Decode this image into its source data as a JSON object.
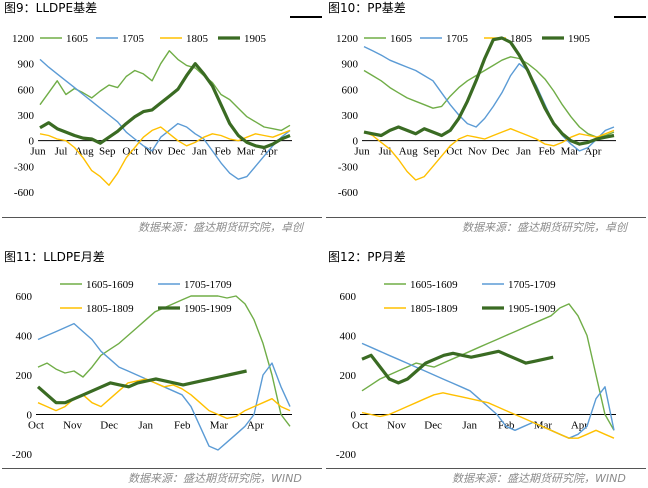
{
  "colors": {
    "s1605": "#70ad47",
    "s1705": "#5b9bd5",
    "s1805": "#ffc000",
    "s1905": "#3a6b23"
  },
  "fig9": {
    "title": "图9：LLDPE基差",
    "source": "数据来源：盛达期货研究院，卓创"
  },
  "fig10": {
    "title": "图10：PP基差",
    "source": "数据来源：盛达期货研究院，卓创"
  },
  "fig11": {
    "title": "图11：LLDPE月差",
    "source": "数据来源：盛达期货研究院，WIND"
  },
  "fig12": {
    "title": "图12：PP月差",
    "source": "数据来源：盛达期货研究院，WIND"
  },
  "chart_data": [
    {
      "id": "fig9",
      "type": "line",
      "x_ticks": [
        "Jun",
        "Jul",
        "Aug",
        "Sep",
        "Oct",
        "Nov",
        "Dec",
        "Jan",
        "Feb",
        "Mar",
        "Apr"
      ],
      "yticks": [
        1200,
        900,
        600,
        300,
        0,
        -300,
        -600
      ],
      "ylim": [
        -600,
        1200
      ],
      "legend_position": "top",
      "series": [
        {
          "name": "1605",
          "key": "s1605",
          "values": [
            420,
            560,
            700,
            540,
            610,
            560,
            500,
            580,
            650,
            620,
            750,
            820,
            780,
            700,
            900,
            1050,
            950,
            880,
            850,
            760,
            680,
            540,
            480,
            380,
            280,
            220,
            160,
            140,
            120,
            180
          ]
        },
        {
          "name": "1705",
          "key": "s1705",
          "values": [
            950,
            860,
            780,
            700,
            620,
            540,
            460,
            380,
            300,
            220,
            100,
            20,
            -60,
            -120,
            40,
            120,
            200,
            160,
            80,
            20,
            -120,
            -260,
            -380,
            -450,
            -420,
            -300,
            -180,
            -60,
            40,
            120
          ]
        },
        {
          "name": "1805",
          "key": "s1805",
          "values": [
            80,
            60,
            20,
            0,
            -80,
            -200,
            -350,
            -420,
            -520,
            -380,
            -200,
            -80,
            40,
            120,
            160,
            80,
            0,
            -60,
            -20,
            40,
            80,
            60,
            20,
            0,
            40,
            80,
            60,
            40,
            80,
            120
          ]
        },
        {
          "name": "1905",
          "key": "s1905",
          "values": [
            150,
            210,
            140,
            100,
            60,
            30,
            20,
            -30,
            40,
            110,
            200,
            280,
            340,
            360,
            440,
            520,
            600,
            760,
            900,
            780,
            640,
            420,
            200,
            60,
            -20,
            -60,
            -80,
            -40,
            20,
            60
          ]
        }
      ]
    },
    {
      "id": "fig10",
      "type": "line",
      "x_ticks": [
        "Jun",
        "Jul",
        "Aug",
        "Sep",
        "Oct",
        "Nov",
        "Dec",
        "Jan",
        "Feb",
        "Mar",
        "Apr"
      ],
      "yticks": [
        1200,
        900,
        600,
        300,
        0,
        -300,
        -600
      ],
      "ylim": [
        -600,
        1200
      ],
      "legend_position": "top",
      "series": [
        {
          "name": "1605",
          "key": "s1605",
          "values": [
            820,
            760,
            700,
            620,
            560,
            500,
            460,
            420,
            380,
            400,
            520,
            620,
            700,
            760,
            820,
            880,
            940,
            980,
            960,
            900,
            820,
            720,
            580,
            420,
            280,
            160,
            80,
            40,
            60,
            100
          ]
        },
        {
          "name": "1705",
          "key": "s1705",
          "values": [
            1100,
            1050,
            1000,
            940,
            900,
            860,
            820,
            760,
            700,
            560,
            420,
            300,
            200,
            160,
            260,
            400,
            560,
            760,
            900,
            820,
            640,
            420,
            200,
            60,
            -40,
            -120,
            -80,
            20,
            120,
            160
          ]
        },
        {
          "name": "1805",
          "key": "s1805",
          "values": [
            100,
            60,
            -20,
            -100,
            -220,
            -360,
            -460,
            -420,
            -300,
            -180,
            -60,
            20,
            60,
            40,
            20,
            60,
            100,
            140,
            100,
            60,
            20,
            -40,
            -60,
            -20,
            40,
            80,
            60,
            40,
            80,
            120
          ]
        },
        {
          "name": "1905",
          "key": "s1905",
          "values": [
            100,
            80,
            60,
            120,
            160,
            120,
            80,
            140,
            100,
            60,
            120,
            260,
            460,
            700,
            960,
            1180,
            1200,
            1150,
            1000,
            820,
            600,
            380,
            200,
            80,
            0,
            -40,
            -20,
            20,
            40,
            60
          ]
        }
      ]
    },
    {
      "id": "fig11",
      "type": "line",
      "x_ticks": [
        "Oct",
        "Nov",
        "Dec",
        "Jan",
        "Feb",
        "Mar",
        "Apr"
      ],
      "yticks": [
        600,
        400,
        200,
        0,
        -200
      ],
      "ylim": [
        -200,
        600
      ],
      "legend_position": "top",
      "series": [
        {
          "name": "1605-1609",
          "key": "s1605",
          "values": [
            240,
            260,
            230,
            210,
            220,
            190,
            240,
            300,
            330,
            360,
            400,
            440,
            480,
            520,
            540,
            560,
            580,
            600,
            600,
            610,
            600,
            590,
            600,
            560,
            480,
            360,
            200,
            0,
            -60
          ]
        },
        {
          "name": "1705-1709",
          "key": "s1705",
          "values": [
            380,
            400,
            420,
            440,
            460,
            420,
            380,
            320,
            280,
            240,
            220,
            200,
            180,
            160,
            140,
            120,
            100,
            40,
            -60,
            -160,
            -180,
            -140,
            -100,
            -60,
            0,
            200,
            260,
            140,
            40
          ]
        },
        {
          "name": "1805-1809",
          "key": "s1805",
          "values": [
            60,
            40,
            20,
            40,
            80,
            100,
            60,
            40,
            80,
            120,
            160,
            170,
            180,
            160,
            140,
            150,
            130,
            100,
            60,
            20,
            0,
            -20,
            -10,
            20,
            40,
            60,
            80,
            40,
            20
          ]
        },
        {
          "name": "1905-1909",
          "key": "s1905",
          "values": [
            140,
            100,
            60,
            60,
            80,
            100,
            120,
            140,
            160,
            150,
            140,
            160,
            170,
            180,
            170,
            160,
            150,
            160,
            170,
            180,
            190,
            200,
            210,
            220
          ]
        }
      ]
    },
    {
      "id": "fig12",
      "type": "line",
      "x_ticks": [
        "Oct",
        "Nov",
        "Dec",
        "Jan",
        "Feb",
        "Mar",
        "Apr"
      ],
      "yticks": [
        600,
        400,
        200,
        0,
        -200
      ],
      "ylim": [
        -200,
        600
      ],
      "legend_position": "top",
      "series": [
        {
          "name": "1605-1609",
          "key": "s1605",
          "values": [
            120,
            150,
            180,
            200,
            220,
            240,
            260,
            250,
            240,
            260,
            280,
            300,
            320,
            340,
            360,
            380,
            400,
            420,
            440,
            460,
            480,
            500,
            540,
            560,
            500,
            400,
            200,
            0,
            -80
          ]
        },
        {
          "name": "1705-1709",
          "key": "s1705",
          "values": [
            360,
            340,
            320,
            300,
            280,
            260,
            240,
            220,
            200,
            180,
            160,
            140,
            120,
            80,
            40,
            0,
            -60,
            -80,
            -60,
            -40,
            -60,
            -80,
            -100,
            -120,
            -100,
            -60,
            80,
            140,
            -80
          ]
        },
        {
          "name": "1805-1809",
          "key": "s1805",
          "values": [
            10,
            0,
            -10,
            0,
            20,
            40,
            60,
            80,
            100,
            110,
            100,
            90,
            80,
            70,
            60,
            40,
            20,
            0,
            -20,
            -40,
            -60,
            -80,
            -100,
            -120,
            -120,
            -100,
            -80,
            -100,
            -120
          ]
        },
        {
          "name": "1905-1909",
          "key": "s1905",
          "values": [
            280,
            300,
            240,
            180,
            160,
            180,
            220,
            260,
            280,
            300,
            310,
            300,
            290,
            300,
            310,
            320,
            300,
            280,
            260,
            270,
            280,
            290
          ]
        }
      ]
    }
  ]
}
